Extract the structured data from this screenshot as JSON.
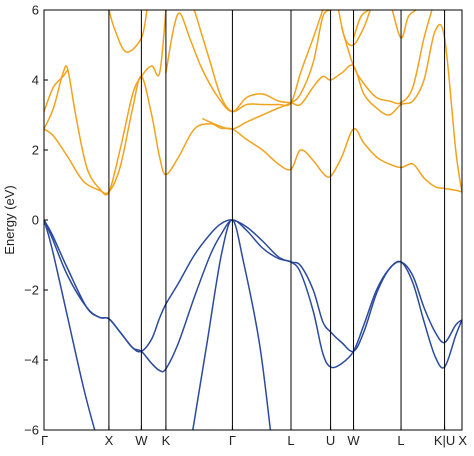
{
  "chart_data": {
    "type": "line",
    "title": "",
    "xlabel": "",
    "ylabel": "Energy (eV)",
    "ylim": [
      -6,
      6
    ],
    "yticks": [
      -6,
      -4,
      -2,
      0,
      2,
      4,
      6
    ],
    "grid": false,
    "legend": "none",
    "x_range": [
      0,
      2.64
    ],
    "kpoints": [
      {
        "label": "Γ",
        "x": 0.0
      },
      {
        "label": "X",
        "x": 0.41
      },
      {
        "label": "W",
        "x": 0.615
      },
      {
        "label": "K",
        "x": 0.77
      },
      {
        "label": "Γ",
        "x": 1.19
      },
      {
        "label": "L",
        "x": 1.56
      },
      {
        "label": "U",
        "x": 1.81
      },
      {
        "label": "W",
        "x": 1.955
      },
      {
        "label": "L",
        "x": 2.255
      },
      {
        "label": "K|U",
        "x": 2.53
      },
      {
        "label": "X",
        "x": 2.64
      }
    ],
    "colors": {
      "valence": "#2b4a9e",
      "conduction": "#f2a21c",
      "axes": "#000000"
    },
    "series": [
      {
        "group": "valence",
        "points": [
          [
            0,
            0
          ],
          [
            0.05,
            -0.5
          ],
          [
            0.15,
            -1.6
          ],
          [
            0.27,
            -2.5
          ],
          [
            0.35,
            -2.78
          ],
          [
            0.41,
            -2.82
          ],
          [
            0.48,
            -3.2
          ],
          [
            0.56,
            -3.65
          ],
          [
            0.615,
            -3.75
          ],
          [
            0.68,
            -3.4
          ],
          [
            0.73,
            -2.8
          ],
          [
            0.77,
            -2.4
          ],
          [
            0.85,
            -1.8
          ],
          [
            0.95,
            -1.0
          ],
          [
            1.05,
            -0.4
          ],
          [
            1.12,
            -0.1
          ],
          [
            1.19,
            0.0
          ],
          [
            1.28,
            -0.2
          ],
          [
            1.38,
            -0.6
          ],
          [
            1.48,
            -1.05
          ],
          [
            1.56,
            -1.2
          ],
          [
            1.62,
            -1.3
          ],
          [
            1.7,
            -2.0
          ],
          [
            1.76,
            -2.9
          ],
          [
            1.81,
            -3.2
          ],
          [
            1.88,
            -3.5
          ],
          [
            1.955,
            -3.75
          ],
          [
            2.02,
            -3.2
          ],
          [
            2.1,
            -2.1
          ],
          [
            2.18,
            -1.4
          ],
          [
            2.255,
            -1.2
          ],
          [
            2.33,
            -1.6
          ],
          [
            2.4,
            -2.5
          ],
          [
            2.47,
            -3.2
          ],
          [
            2.53,
            -3.5
          ],
          [
            2.6,
            -3.0
          ],
          [
            2.64,
            -2.85
          ]
        ]
      },
      {
        "group": "valence",
        "points": [
          [
            0,
            0
          ],
          [
            0.05,
            -0.4
          ],
          [
            0.15,
            -1.4
          ],
          [
            0.27,
            -2.5
          ],
          [
            0.35,
            -2.78
          ],
          [
            0.41,
            -2.82
          ],
          [
            0.48,
            -3.2
          ],
          [
            0.56,
            -3.65
          ],
          [
            0.615,
            -3.75
          ],
          [
            0.68,
            -4.1
          ],
          [
            0.73,
            -4.3
          ],
          [
            0.77,
            -4.25
          ],
          [
            0.85,
            -3.5
          ],
          [
            0.95,
            -2.2
          ],
          [
            1.05,
            -1.0
          ],
          [
            1.12,
            -0.4
          ],
          [
            1.19,
            0.0
          ],
          [
            1.28,
            -0.3
          ],
          [
            1.38,
            -0.8
          ],
          [
            1.48,
            -1.1
          ],
          [
            1.56,
            -1.2
          ],
          [
            1.62,
            -1.5
          ],
          [
            1.7,
            -2.6
          ],
          [
            1.76,
            -3.8
          ],
          [
            1.81,
            -4.2
          ],
          [
            1.88,
            -4.1
          ],
          [
            1.955,
            -3.75
          ],
          [
            2.02,
            -3.0
          ],
          [
            2.1,
            -2.0
          ],
          [
            2.18,
            -1.4
          ],
          [
            2.255,
            -1.2
          ],
          [
            2.33,
            -1.8
          ],
          [
            2.4,
            -2.9
          ],
          [
            2.47,
            -3.9
          ],
          [
            2.53,
            -4.2
          ],
          [
            2.6,
            -3.3
          ],
          [
            2.64,
            -2.85
          ]
        ]
      },
      {
        "group": "valence",
        "points": [
          [
            0,
            0
          ],
          [
            0.05,
            -0.8
          ],
          [
            0.15,
            -2.8
          ],
          [
            0.25,
            -4.8
          ],
          [
            0.32,
            -6.0
          ]
        ]
      },
      {
        "group": "valence",
        "points": [
          [
            0.94,
            -6.0
          ],
          [
            1.03,
            -3.5
          ],
          [
            1.12,
            -1.0
          ],
          [
            1.19,
            0.0
          ],
          [
            1.26,
            -1.2
          ],
          [
            1.36,
            -3.5
          ],
          [
            1.43,
            -6.0
          ]
        ]
      },
      {
        "group": "conduction",
        "points": [
          [
            0,
            2.6
          ],
          [
            0.06,
            2.4
          ],
          [
            0.15,
            1.8
          ],
          [
            0.25,
            1.1
          ],
          [
            0.35,
            0.85
          ],
          [
            0.41,
            0.8
          ],
          [
            0.48,
            1.5
          ],
          [
            0.56,
            3.2
          ],
          [
            0.615,
            4.1
          ],
          [
            0.68,
            3.0
          ],
          [
            0.73,
            1.8
          ],
          [
            0.77,
            1.3
          ],
          [
            0.85,
            1.8
          ],
          [
            0.95,
            2.6
          ],
          [
            1.05,
            2.75
          ],
          [
            1.12,
            2.62
          ],
          [
            1.19,
            2.6
          ],
          [
            1.28,
            2.3
          ],
          [
            1.38,
            2.0
          ],
          [
            1.48,
            1.6
          ],
          [
            1.56,
            1.45
          ],
          [
            1.62,
            2.0
          ],
          [
            1.7,
            1.7
          ],
          [
            1.76,
            1.35
          ],
          [
            1.81,
            1.25
          ],
          [
            1.88,
            1.8
          ],
          [
            1.955,
            2.6
          ],
          [
            2.02,
            2.2
          ],
          [
            2.1,
            1.8
          ],
          [
            2.18,
            1.6
          ],
          [
            2.255,
            1.5
          ],
          [
            2.33,
            1.6
          ],
          [
            2.4,
            1.2
          ],
          [
            2.47,
            0.95
          ],
          [
            2.53,
            0.9
          ],
          [
            2.6,
            0.85
          ],
          [
            2.64,
            0.8
          ]
        ]
      },
      {
        "group": "conduction",
        "points": [
          [
            0,
            2.6
          ],
          [
            0.06,
            3.2
          ],
          [
            0.12,
            4.2
          ],
          [
            0.15,
            4.3
          ],
          [
            0.2,
            3.0
          ],
          [
            0.27,
            1.5
          ],
          [
            0.35,
            0.9
          ],
          [
            0.41,
            0.8
          ],
          [
            0.48,
            2.0
          ],
          [
            0.56,
            3.6
          ],
          [
            0.615,
            4.1
          ],
          [
            0.68,
            4.4
          ],
          [
            0.73,
            4.2
          ],
          [
            0.77,
            6.0
          ]
        ]
      },
      {
        "group": "conduction",
        "points": [
          [
            0,
            3.1
          ],
          [
            0.06,
            3.8
          ],
          [
            0.12,
            4.1
          ],
          [
            0.15,
            4.3
          ]
        ]
      },
      {
        "group": "conduction",
        "points": [
          [
            0.41,
            6.0
          ],
          [
            0.45,
            5.4
          ],
          [
            0.52,
            4.8
          ],
          [
            0.615,
            5.2
          ],
          [
            0.65,
            6.0
          ]
        ]
      },
      {
        "group": "conduction",
        "points": [
          [
            0.77,
            4.2
          ],
          [
            0.82,
            5.5
          ],
          [
            0.86,
            5.9
          ],
          [
            0.92,
            5.2
          ],
          [
            1.0,
            4.3
          ],
          [
            1.1,
            3.5
          ],
          [
            1.19,
            3.1
          ],
          [
            1.28,
            3.5
          ],
          [
            1.38,
            3.6
          ],
          [
            1.48,
            3.4
          ],
          [
            1.56,
            3.35
          ],
          [
            1.62,
            3.3
          ],
          [
            1.7,
            3.8
          ],
          [
            1.76,
            4.1
          ],
          [
            1.81,
            4.0
          ],
          [
            1.88,
            4.2
          ],
          [
            1.955,
            4.4
          ],
          [
            2.02,
            3.6
          ],
          [
            2.1,
            3.2
          ],
          [
            2.18,
            3.0
          ],
          [
            2.255,
            3.3
          ],
          [
            2.33,
            3.4
          ],
          [
            2.4,
            4.0
          ],
          [
            2.47,
            5.4
          ],
          [
            2.53,
            5.2
          ],
          [
            2.6,
            2.0
          ],
          [
            2.64,
            0.8
          ]
        ]
      },
      {
        "group": "conduction",
        "points": [
          [
            0.95,
            6.0
          ],
          [
            1.05,
            4.5
          ],
          [
            1.12,
            3.5
          ],
          [
            1.19,
            3.1
          ],
          [
            1.28,
            3.3
          ],
          [
            1.38,
            3.3
          ],
          [
            1.48,
            3.3
          ],
          [
            1.56,
            3.35
          ],
          [
            1.62,
            4.2
          ],
          [
            1.7,
            5.2
          ],
          [
            1.76,
            6.0
          ]
        ]
      },
      {
        "group": "conduction",
        "points": [
          [
            1.0,
            2.9
          ],
          [
            1.1,
            2.7
          ],
          [
            1.19,
            2.6
          ],
          [
            1.28,
            2.8
          ],
          [
            1.38,
            3.0
          ],
          [
            1.48,
            3.2
          ],
          [
            1.56,
            3.35
          ],
          [
            1.62,
            3.6
          ],
          [
            1.7,
            4.5
          ],
          [
            1.76,
            5.8
          ],
          [
            1.81,
            6.0
          ]
        ]
      },
      {
        "group": "conduction",
        "points": [
          [
            1.88,
            5.5
          ],
          [
            1.955,
            4.4
          ],
          [
            2.02,
            3.9
          ],
          [
            2.1,
            3.5
          ],
          [
            2.18,
            3.4
          ],
          [
            2.255,
            3.35
          ],
          [
            2.33,
            3.8
          ],
          [
            2.4,
            5.2
          ],
          [
            2.45,
            6.0
          ]
        ]
      },
      {
        "group": "conduction",
        "points": [
          [
            1.955,
            5.2
          ],
          [
            2.0,
            5.8
          ],
          [
            2.05,
            6.0
          ]
        ]
      },
      {
        "group": "conduction",
        "points": [
          [
            2.2,
            6.0
          ],
          [
            2.255,
            5.2
          ],
          [
            2.3,
            5.8
          ],
          [
            2.35,
            6.0
          ]
        ]
      },
      {
        "group": "conduction",
        "points": [
          [
            1.86,
            6.0
          ],
          [
            1.9,
            5.2
          ],
          [
            1.955,
            5.0
          ],
          [
            2.02,
            5.5
          ],
          [
            2.06,
            6.0
          ]
        ]
      }
    ]
  }
}
